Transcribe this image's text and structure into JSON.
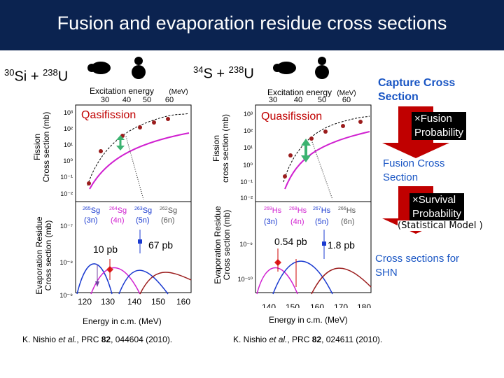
{
  "title": "Fusion and evaporation residue cross sections",
  "left": {
    "reaction_a_mass": "30",
    "reaction_a_elem": "Si",
    "reaction_plus": " + ",
    "reaction_b_mass": "238",
    "reaction_b_elem": "U",
    "excitation_label": "Excitation energy",
    "mev_label": "(MeV)",
    "fission_axis": "Fission\nCross section (mb)",
    "evap_axis": "Evaporation Residue\nCross section (mb)",
    "qf_label": "Qasifission",
    "top_ticks_x": [
      "30",
      "40",
      "50",
      "60"
    ],
    "bottom_ticks_x": [
      "120",
      "130",
      "140",
      "150",
      "160"
    ],
    "xlabel": "Energy in c.m. (MeV)",
    "pb_red": "10 pb",
    "pb_blue": "67 pb",
    "isotopes": [
      {
        "mass": "265",
        "elem": "Sg",
        "ch": "(3n)"
      },
      {
        "mass": "264",
        "elem": "Sg",
        "ch": "(4n)"
      },
      {
        "mass": "263",
        "elem": "Sg",
        "ch": "(5n)"
      },
      {
        "mass": "262",
        "elem": "Sg",
        "ch": "(6n)"
      }
    ],
    "reference_pre": "K. Nishio ",
    "reference_etal": "et al.",
    "reference_mid": ", PRC ",
    "reference_vol": "82",
    "reference_post": ", 044604 (2010)."
  },
  "right": {
    "reaction_a_mass": "34",
    "reaction_a_elem": "S",
    "reaction_plus": " + ",
    "reaction_b_mass": "238",
    "reaction_b_elem": "U",
    "excitation_label": "Excitation energy",
    "mev_label": "(MeV)",
    "fission_axis": "Fission\ncross section (mb)",
    "evap_axis": "Evaporation Residue\nCross section (mb)",
    "qf_label": "Quasifission",
    "top_ticks_x": [
      "30",
      "40",
      "50",
      "60"
    ],
    "bottom_ticks_x": [
      "140",
      "150",
      "160",
      "170",
      "180"
    ],
    "xlabel": "Energy in c.m. (MeV)",
    "pb_red": "0.54 pb",
    "pb_blue": "1.8 pb",
    "isotopes": [
      {
        "mass": "269",
        "elem": "Hs",
        "ch": "(3n)"
      },
      {
        "mass": "268",
        "elem": "Hs",
        "ch": "(4n)"
      },
      {
        "mass": "267",
        "elem": "Hs",
        "ch": "(5n)"
      },
      {
        "mass": "266",
        "elem": "Hs",
        "ch": "(6n)"
      }
    ],
    "reference_pre": "K. Nishio ",
    "reference_etal": "et al.",
    "reference_mid": ", PRC ",
    "reference_vol": "82",
    "reference_post": ", 024611 (2010)."
  },
  "left_fission_yticks": [
    "10³",
    "10²",
    "10¹",
    "10⁰",
    "10⁻¹",
    "10⁻²"
  ],
  "left_evap_yticks": [
    "10⁻⁷",
    "10⁻⁸",
    "10⁻⁹"
  ],
  "right_fission_yticks": [
    "10³",
    "10²",
    "10¹",
    "10⁰",
    "10⁻¹",
    "10⁻²"
  ],
  "right_evap_yticks": [
    "10⁻⁹",
    "10⁻¹⁰"
  ],
  "side": {
    "capture": "Capture Cross\nSection",
    "fusion_prob": "×Fusion\nProbability",
    "fusion_cs": "Fusion Cross\nSection",
    "survival_prob": "×Survival\nProbability",
    "statistical": "(Statistical Model )",
    "shn": "Cross sections for\nSHN"
  },
  "colors": {
    "header": "#0b2350",
    "red_arrow": "#c00000",
    "blue_text": "#1a56c4",
    "magenta": "#d020d0",
    "green_arrow": "#3cb371"
  }
}
